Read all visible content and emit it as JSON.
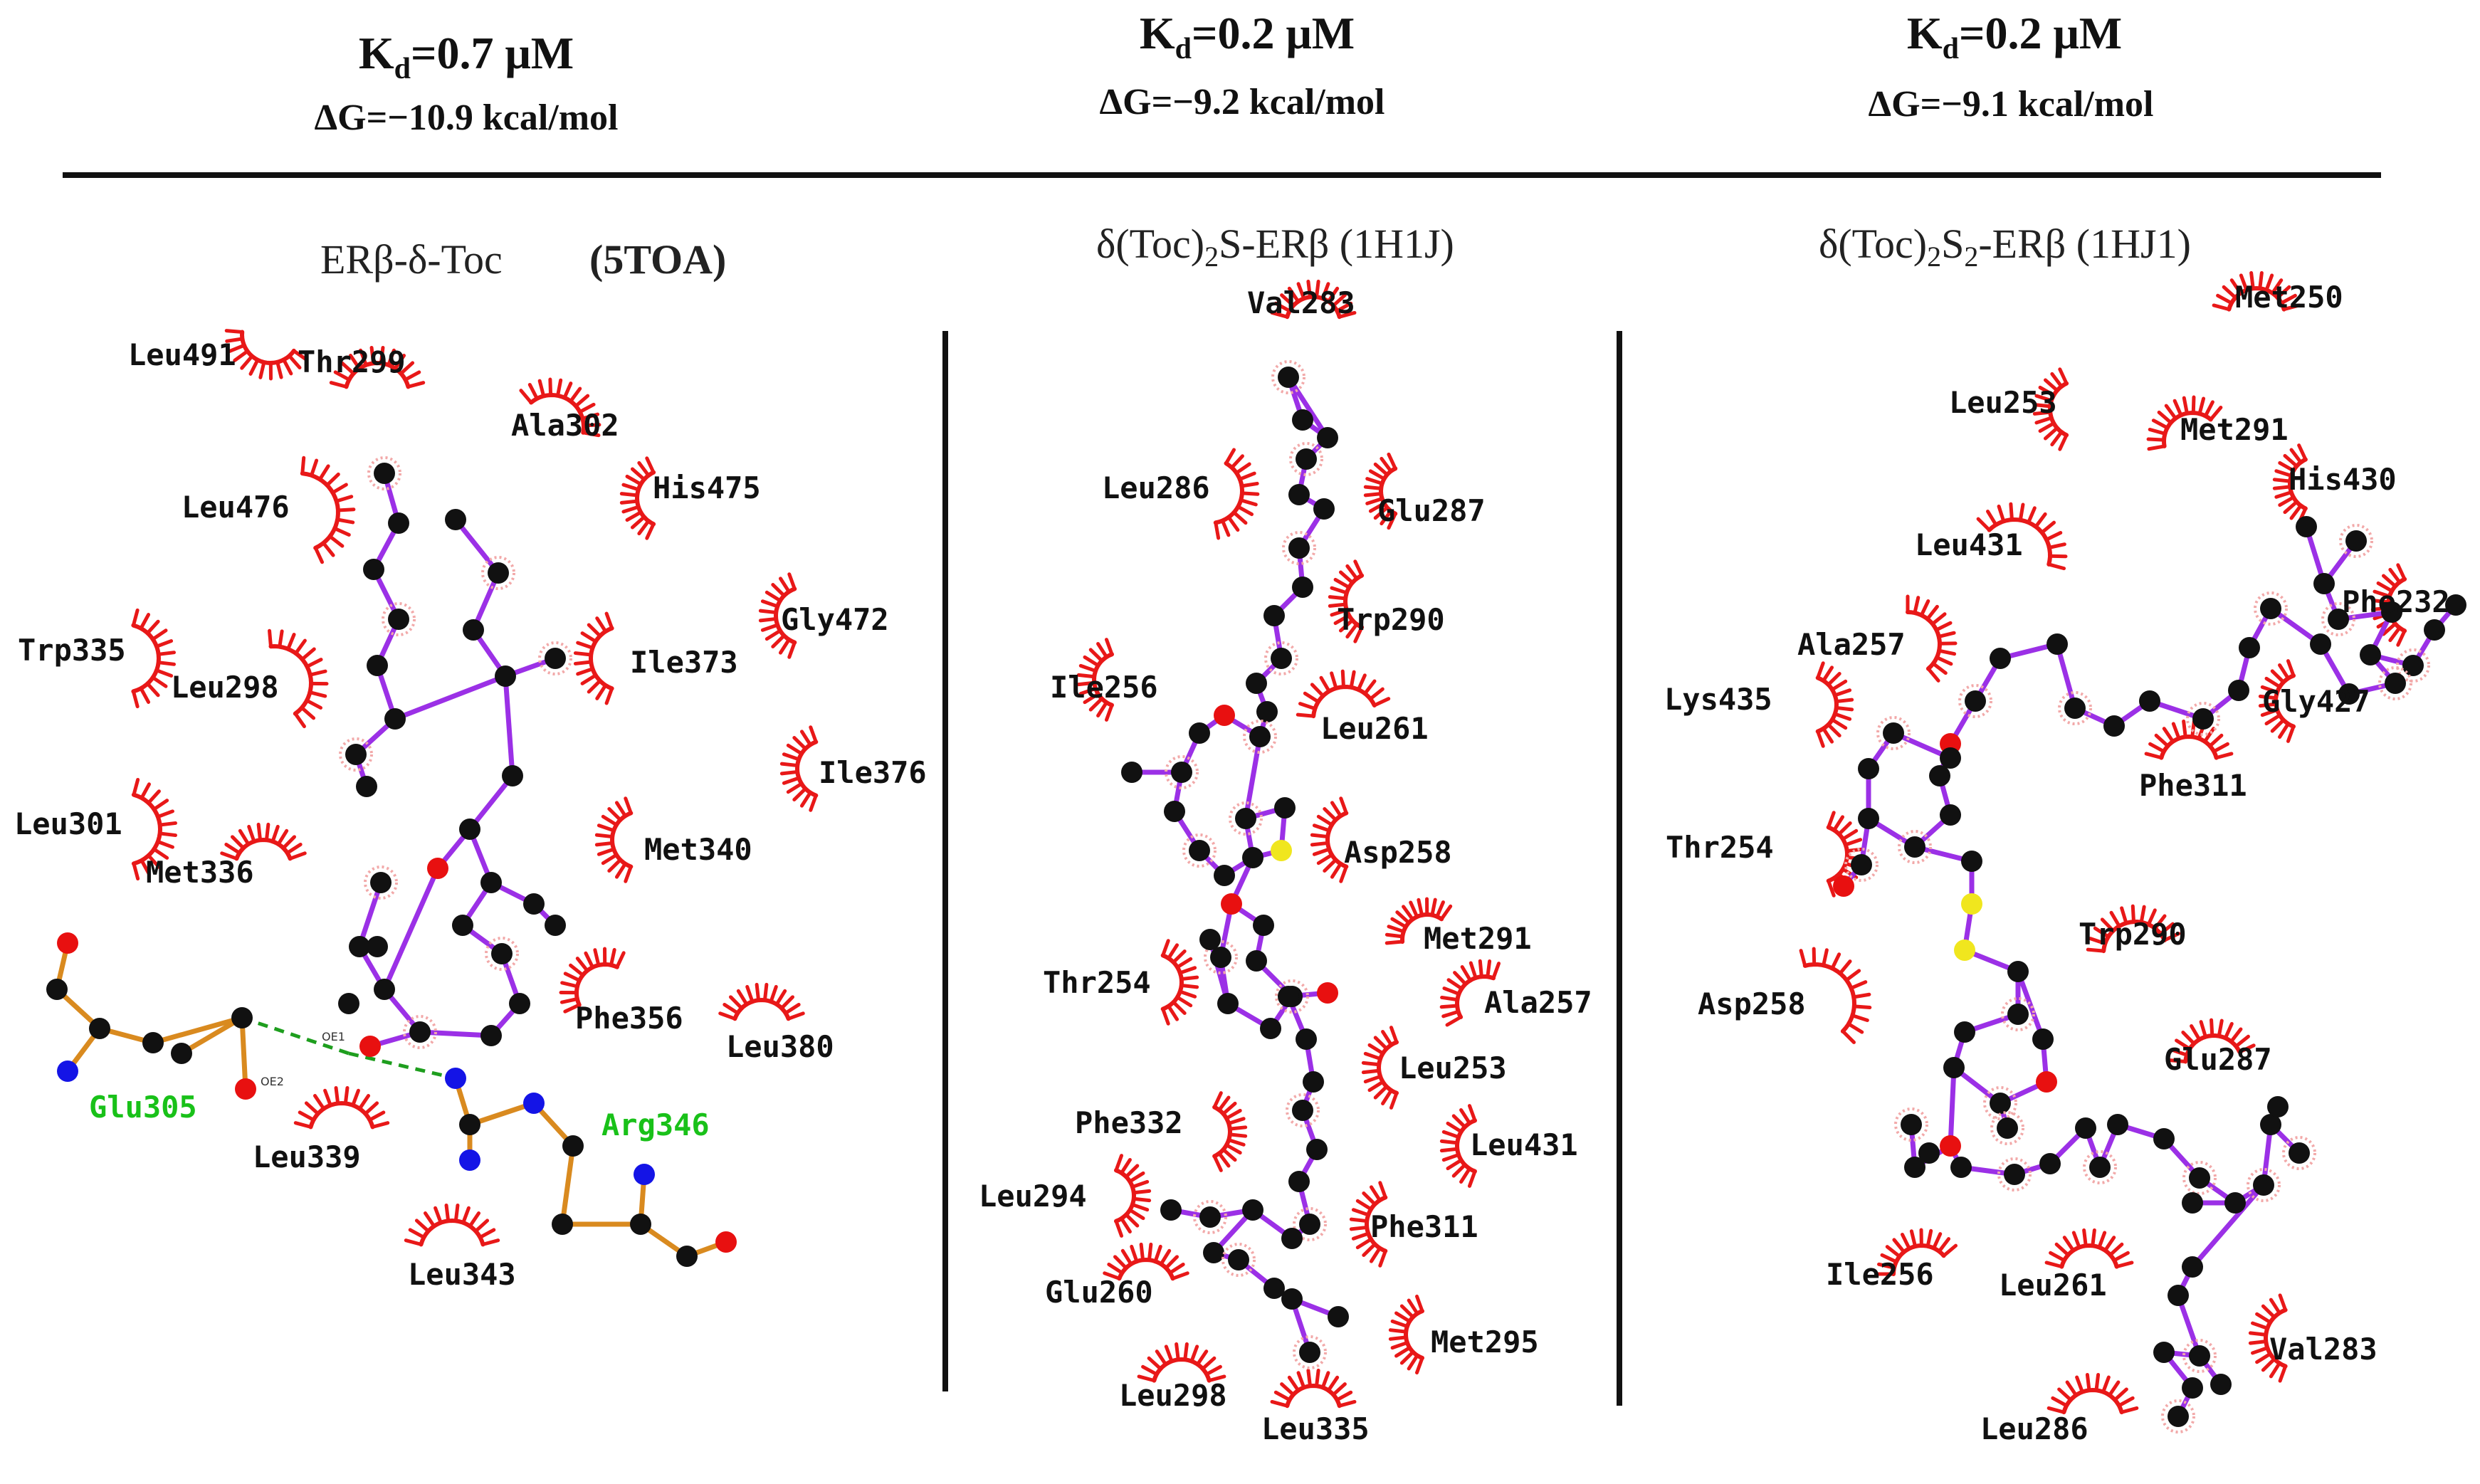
{
  "colors": {
    "bond": "#9b30e6",
    "carbon": "#111111",
    "oxygen": "#e81010",
    "sulfur": "#f0e61e",
    "nitrogen": "#1414e6",
    "hydrophobic_arc": "#e81818",
    "side_chain": "#d98a1f",
    "hbond": "#1e9e1e",
    "hbond_label": "#19c119"
  },
  "panels": [
    {
      "id": "p1",
      "kd_prefix": "K",
      "kd_sub": "d",
      "kd_value": "=0.7 μM",
      "dg": "ΔG=−10.9 kcal/mol",
      "title_parts": [
        "ERβ-δ-Toc",
        "(5TOA)"
      ],
      "residues": [
        "Leu491",
        "Thr299",
        "Ala302",
        "His475",
        "Leu476",
        "Gly472",
        "Trp335",
        "Leu298",
        "Ile373",
        "Ile376",
        "Leu301",
        "Met336",
        "Met340",
        "Phe356",
        "Leu380",
        "Leu339",
        "Leu343"
      ],
      "hbond_residues": [
        "Glu305",
        "Arg346"
      ],
      "atom_tags": [
        "OE1",
        "OE2"
      ]
    },
    {
      "id": "p2",
      "kd_prefix": "K",
      "kd_sub": "d",
      "kd_value": "=0.2 μM",
      "dg": "ΔG=−9.2 kcal/mol",
      "title_main": "δ(Toc)",
      "title_sub": "2",
      "title_rest": "S-ERβ (1H1J)",
      "residues": [
        "Val283",
        "Leu286",
        "Glu287",
        "Trp290",
        "Ile256",
        "Leu261",
        "Asp258",
        "Met291",
        "Thr254",
        "Ala257",
        "Phe332",
        "Leu253",
        "Leu431",
        "Leu294",
        "Phe311",
        "Glu260",
        "Met295",
        "Leu298",
        "Leu335"
      ]
    },
    {
      "id": "p3",
      "kd_prefix": "K",
      "kd_sub": "d",
      "kd_value": "=0.2 μM",
      "dg": "ΔG=−9.1 kcal/mol",
      "title_main": "δ(Toc)",
      "title_sub1": "2",
      "title_mid": "S",
      "title_sub2": "2",
      "title_rest": "-ERβ (1HJ1)",
      "residues": [
        "Met250",
        "Leu253",
        "Met291",
        "His430",
        "Leu431",
        "Phe232",
        "Ala257",
        "Lys435",
        "Gly427",
        "Phe311",
        "Thr254",
        "Trp290",
        "Asp258",
        "Glu287",
        "Ile256",
        "Leu261",
        "Val283",
        "Leu286"
      ]
    }
  ]
}
